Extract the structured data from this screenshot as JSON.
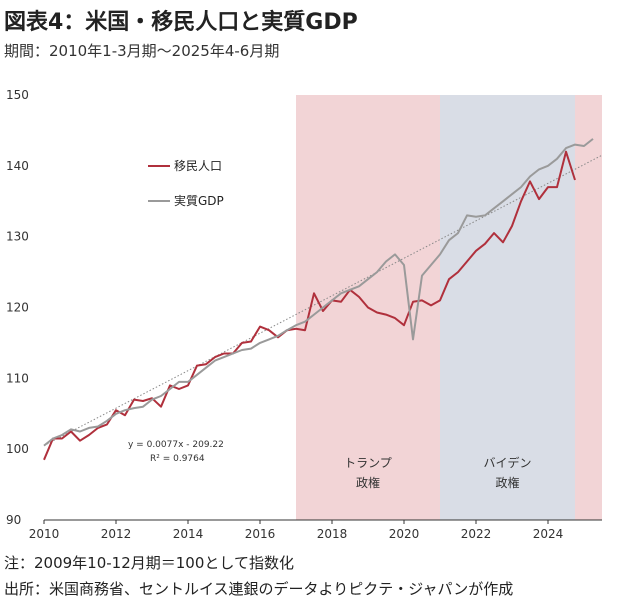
{
  "title": "図表4：米国・移民人口と実質GDP",
  "subtitle": "期間：2010年1-3月期～2025年4-6月期",
  "note": "注：2009年10-12月期＝100として指数化",
  "source": "出所：米国商務省、セントルイス連銀のデータよりピクテ・ジャパンが作成",
  "chart_data": {
    "type": "line",
    "x_label_years": [
      "2010",
      "2012",
      "2014",
      "2016",
      "2018",
      "2020",
      "2022",
      "2024"
    ],
    "xlim": [
      2010.0,
      2025.5
    ],
    "ylim": [
      90,
      150
    ],
    "yticks": [
      90,
      100,
      110,
      120,
      130,
      140,
      150
    ],
    "grid": false,
    "legend_position": "top-left",
    "periods": [
      {
        "name": "トランプ",
        "name2": "政権",
        "start": 2017.0,
        "end": 2021.0,
        "color": "#f2d4d6"
      },
      {
        "name": "バイデン",
        "name2": "政権",
        "start": 2021.0,
        "end": 2024.75,
        "color": "#d9dde6"
      },
      {
        "name": "",
        "name2": "",
        "start": 2024.75,
        "end": 2025.5,
        "color": "#f2d4d6"
      }
    ],
    "trendline": {
      "x": [
        2010.0,
        2025.5
      ],
      "y": [
        100.5,
        141.5
      ],
      "equation": "y = 0.0077x - 209.22",
      "r2": "R² = 0.9764"
    },
    "series": [
      {
        "name": "移民人口",
        "color": "#b0303c",
        "x": [
          2010.0,
          2010.25,
          2010.5,
          2010.75,
          2011.0,
          2011.25,
          2011.5,
          2011.75,
          2012.0,
          2012.25,
          2012.5,
          2012.75,
          2013.0,
          2013.25,
          2013.5,
          2013.75,
          2014.0,
          2014.25,
          2014.5,
          2014.75,
          2015.0,
          2015.25,
          2015.5,
          2015.75,
          2016.0,
          2016.25,
          2016.5,
          2016.75,
          2017.0,
          2017.25,
          2017.5,
          2017.75,
          2018.0,
          2018.25,
          2018.5,
          2018.75,
          2019.0,
          2019.25,
          2019.5,
          2019.75,
          2020.0,
          2020.25,
          2020.5,
          2020.75,
          2021.0,
          2021.25,
          2021.5,
          2021.75,
          2022.0,
          2022.25,
          2022.5,
          2022.75,
          2023.0,
          2023.25,
          2023.5,
          2023.75,
          2024.0,
          2024.25,
          2024.5,
          2024.75,
          2025.0,
          2025.25
        ],
        "y": [
          98.5,
          101.5,
          101.5,
          102.5,
          101.2,
          102.0,
          103.0,
          103.5,
          105.5,
          104.8,
          107.0,
          106.8,
          107.2,
          106.0,
          109.0,
          108.5,
          109.0,
          111.8,
          112.0,
          113.0,
          113.5,
          113.5,
          115.0,
          115.2,
          117.3,
          116.8,
          115.8,
          116.8,
          117.0,
          116.8,
          122.0,
          119.5,
          121.0,
          120.8,
          122.5,
          121.5,
          120.0,
          119.3,
          119.0,
          118.5,
          117.5,
          120.8,
          121.0,
          120.3,
          121.0,
          124.0,
          125.0,
          126.5,
          128.0,
          129.0,
          130.5,
          129.2,
          131.5,
          135.0,
          137.8,
          135.3,
          137.0,
          137.0,
          142.0,
          138.0,
          null,
          null
        ]
      },
      {
        "name": "実質GDP",
        "color": "#9a9a9a",
        "x": [
          2010.0,
          2010.25,
          2010.5,
          2010.75,
          2011.0,
          2011.25,
          2011.5,
          2011.75,
          2012.0,
          2012.25,
          2012.5,
          2012.75,
          2013.0,
          2013.25,
          2013.5,
          2013.75,
          2014.0,
          2014.25,
          2014.5,
          2014.75,
          2015.0,
          2015.25,
          2015.5,
          2015.75,
          2016.0,
          2016.25,
          2016.5,
          2016.75,
          2017.0,
          2017.25,
          2017.5,
          2017.75,
          2018.0,
          2018.25,
          2018.5,
          2018.75,
          2019.0,
          2019.25,
          2019.5,
          2019.75,
          2020.0,
          2020.25,
          2020.5,
          2020.75,
          2021.0,
          2021.25,
          2021.5,
          2021.75,
          2022.0,
          2022.25,
          2022.5,
          2022.75,
          2023.0,
          2023.25,
          2023.5,
          2023.75,
          2024.0,
          2024.25,
          2024.5,
          2024.75,
          2025.0,
          2025.25
        ],
        "y": [
          100.5,
          101.5,
          102.0,
          102.8,
          102.5,
          103.0,
          103.2,
          104.0,
          105.0,
          105.5,
          105.8,
          106.0,
          107.0,
          107.5,
          108.5,
          109.5,
          109.5,
          110.5,
          111.5,
          112.5,
          113.0,
          113.5,
          114.0,
          114.2,
          115.0,
          115.5,
          116.0,
          116.8,
          117.5,
          118.0,
          119.0,
          120.0,
          121.0,
          122.0,
          122.5,
          123.0,
          124.0,
          125.0,
          126.5,
          127.5,
          126.0,
          115.5,
          124.5,
          126.0,
          127.5,
          129.5,
          130.5,
          133.0,
          132.8,
          133.0,
          134.0,
          135.0,
          136.0,
          137.0,
          138.5,
          139.5,
          140.0,
          141.0,
          142.5,
          143.0,
          142.8,
          143.8
        ]
      }
    ]
  }
}
